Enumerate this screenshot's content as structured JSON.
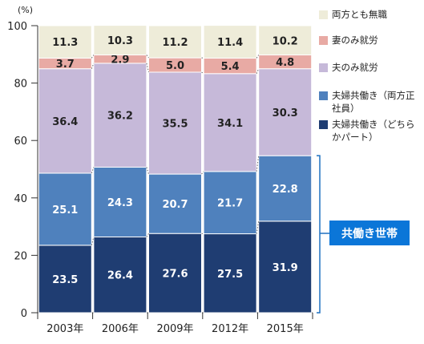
{
  "chart_data": {
    "type": "bar",
    "stacked": true,
    "unit_label": "(%)",
    "categories": [
      "2003年",
      "2006年",
      "2009年",
      "2012年",
      "2015年"
    ],
    "ylim": [
      0,
      100
    ],
    "yticks": [
      0,
      20,
      40,
      60,
      80,
      100
    ],
    "series": [
      {
        "name": "夫婦共働き（どちらかパート）",
        "color": "#1f3d72",
        "values": [
          23.5,
          26.4,
          27.6,
          27.5,
          31.9
        ]
      },
      {
        "name": "夫婦共働き（両方正社員）",
        "color": "#4f81bd",
        "values": [
          25.1,
          24.3,
          20.7,
          21.7,
          22.8
        ]
      },
      {
        "name": "夫のみ就労",
        "color": "#c6b9d9",
        "values": [
          36.4,
          36.2,
          35.5,
          34.1,
          30.3
        ]
      },
      {
        "name": "妻のみ就労",
        "color": "#e8aaa4",
        "values": [
          3.7,
          2.9,
          5.0,
          5.4,
          4.8
        ]
      },
      {
        "name": "両方とも無職",
        "color": "#eeecd9",
        "values": [
          11.3,
          10.3,
          11.2,
          11.4,
          10.2
        ]
      }
    ],
    "annotation": "共働き世帯"
  },
  "legend": [
    {
      "label": "両方とも無職",
      "color": "#eeecd9"
    },
    {
      "label": "妻のみ就労",
      "color": "#e8aaa4"
    },
    {
      "label": "夫のみ就労",
      "color": "#c6b9d9"
    },
    {
      "label": "夫婦共働き（両方正社員）",
      "color": "#4f81bd"
    },
    {
      "label": "夫婦共働き（どちらかパート）",
      "color": "#1f3d72"
    }
  ]
}
